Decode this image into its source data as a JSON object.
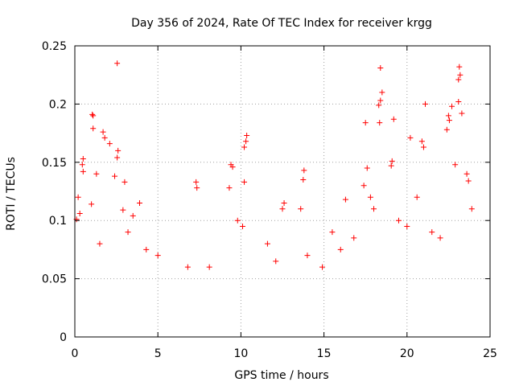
{
  "chart_data": {
    "type": "scatter",
    "title": "Day 356 of 2024, Rate Of TEC Index for receiver krgg",
    "xlabel": "GPS time / hours",
    "ylabel": "ROTI / TECUs",
    "xlim": [
      0,
      25
    ],
    "ylim": [
      0,
      0.25
    ],
    "x_ticks": [
      "0",
      "5",
      "10",
      "15",
      "20",
      "25"
    ],
    "y_ticks": [
      "0",
      "0.05",
      "0.1",
      "0.15",
      "0.2",
      "0.25"
    ],
    "grid": true,
    "marker": "plus",
    "color": "#ff0000",
    "legend": "none",
    "points": [
      [
        2.55,
        0.235
      ],
      [
        18.4,
        0.231
      ],
      [
        23.15,
        0.232
      ],
      [
        23.2,
        0.225
      ],
      [
        23.1,
        0.221
      ],
      [
        18.5,
        0.21
      ],
      [
        18.4,
        0.203
      ],
      [
        18.3,
        0.199
      ],
      [
        21.1,
        0.2
      ],
      [
        22.7,
        0.198
      ],
      [
        23.1,
        0.202
      ],
      [
        1.1,
        0.19
      ],
      [
        1.05,
        0.191
      ],
      [
        22.5,
        0.19
      ],
      [
        22.55,
        0.186
      ],
      [
        23.3,
        0.192
      ],
      [
        18.35,
        0.184
      ],
      [
        17.5,
        0.184
      ],
      [
        19.2,
        0.187
      ],
      [
        1.1,
        0.179
      ],
      [
        1.7,
        0.176
      ],
      [
        1.8,
        0.171
      ],
      [
        10.35,
        0.173
      ],
      [
        10.3,
        0.168
      ],
      [
        22.4,
        0.178
      ],
      [
        20.2,
        0.171
      ],
      [
        20.9,
        0.168
      ],
      [
        21.0,
        0.163
      ],
      [
        2.1,
        0.166
      ],
      [
        10.2,
        0.163
      ],
      [
        2.6,
        0.16
      ],
      [
        2.55,
        0.154
      ],
      [
        0.5,
        0.153
      ],
      [
        0.45,
        0.148
      ],
      [
        9.4,
        0.148
      ],
      [
        9.5,
        0.146
      ],
      [
        17.6,
        0.145
      ],
      [
        19.1,
        0.151
      ],
      [
        19.05,
        0.147
      ],
      [
        13.8,
        0.143
      ],
      [
        13.75,
        0.135
      ],
      [
        22.9,
        0.148
      ],
      [
        23.6,
        0.14
      ],
      [
        23.7,
        0.134
      ],
      [
        0.5,
        0.142
      ],
      [
        1.3,
        0.14
      ],
      [
        2.4,
        0.138
      ],
      [
        3.0,
        0.133
      ],
      [
        10.2,
        0.133
      ],
      [
        7.3,
        0.133
      ],
      [
        7.35,
        0.128
      ],
      [
        9.3,
        0.128
      ],
      [
        12.6,
        0.115
      ],
      [
        12.5,
        0.11
      ],
      [
        13.6,
        0.11
      ],
      [
        16.3,
        0.118
      ],
      [
        17.8,
        0.12
      ],
      [
        17.4,
        0.13
      ],
      [
        20.6,
        0.12
      ],
      [
        0.2,
        0.12
      ],
      [
        1.0,
        0.114
      ],
      [
        3.9,
        0.115
      ],
      [
        0.3,
        0.106
      ],
      [
        0.1,
        0.101
      ],
      [
        2.9,
        0.109
      ],
      [
        3.5,
        0.104
      ],
      [
        5.0,
        0.07
      ],
      [
        6.8,
        0.06
      ],
      [
        9.8,
        0.1
      ],
      [
        10.1,
        0.095
      ],
      [
        11.6,
        0.08
      ],
      [
        14.0,
        0.07
      ],
      [
        15.5,
        0.09
      ],
      [
        16.8,
        0.085
      ],
      [
        18.0,
        0.11
      ],
      [
        19.5,
        0.1
      ],
      [
        21.5,
        0.09
      ],
      [
        23.9,
        0.11
      ],
      [
        8.1,
        0.06
      ],
      [
        12.1,
        0.065
      ],
      [
        14.9,
        0.06
      ],
      [
        16.0,
        0.075
      ],
      [
        20.0,
        0.095
      ],
      [
        22.0,
        0.085
      ],
      [
        3.2,
        0.09
      ],
      [
        1.5,
        0.08
      ],
      [
        4.3,
        0.075
      ]
    ]
  }
}
